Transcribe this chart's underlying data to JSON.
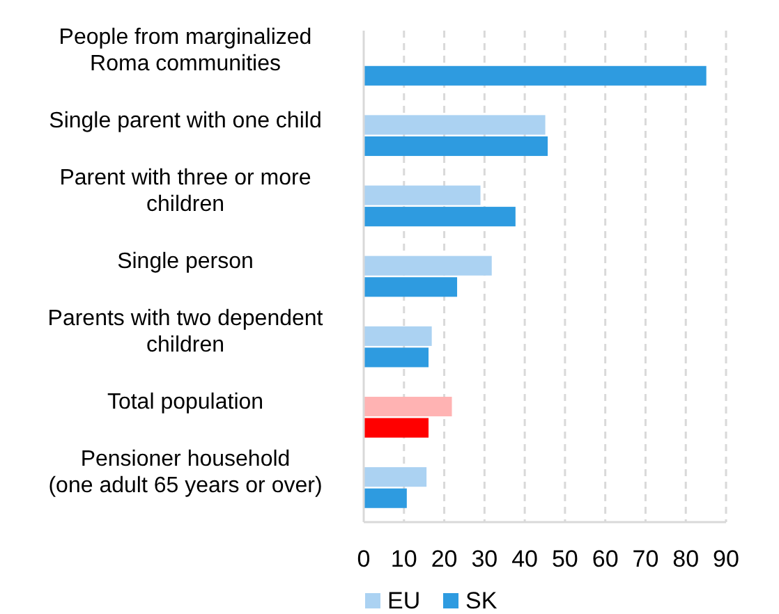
{
  "chart_data": {
    "type": "bar",
    "orientation": "horizontal",
    "categories": [
      "People from marginalized Roma communities",
      "Single parent with one child",
      "Parent with three or more children",
      "Single person",
      "Parents with two dependent children",
      "Total population",
      "Pensioner household\n(one adult 65 years or over)"
    ],
    "series": [
      {
        "name": "EU",
        "color": "#abd2f2",
        "colors": [
          null,
          "#abd2f2",
          "#abd2f2",
          "#abd2f2",
          "#abd2f2",
          "#ffb3b3",
          "#abd2f2"
        ],
        "values": [
          null,
          45.1,
          29.0,
          31.8,
          16.9,
          21.9,
          15.6
        ]
      },
      {
        "name": "SK",
        "color": "#2e9be0",
        "colors": [
          "#2e9be0",
          "#2e9be0",
          "#2e9be0",
          "#2e9be0",
          "#2e9be0",
          "#ff0000",
          "#2e9be0"
        ],
        "values": [
          85.1,
          45.7,
          37.7,
          23.2,
          16.1,
          16.1,
          10.7
        ]
      }
    ],
    "xlim": [
      0,
      90
    ],
    "xticks": [
      0,
      10,
      20,
      30,
      40,
      50,
      60,
      70,
      80,
      90
    ],
    "grid": "x",
    "legend": "bottom"
  }
}
